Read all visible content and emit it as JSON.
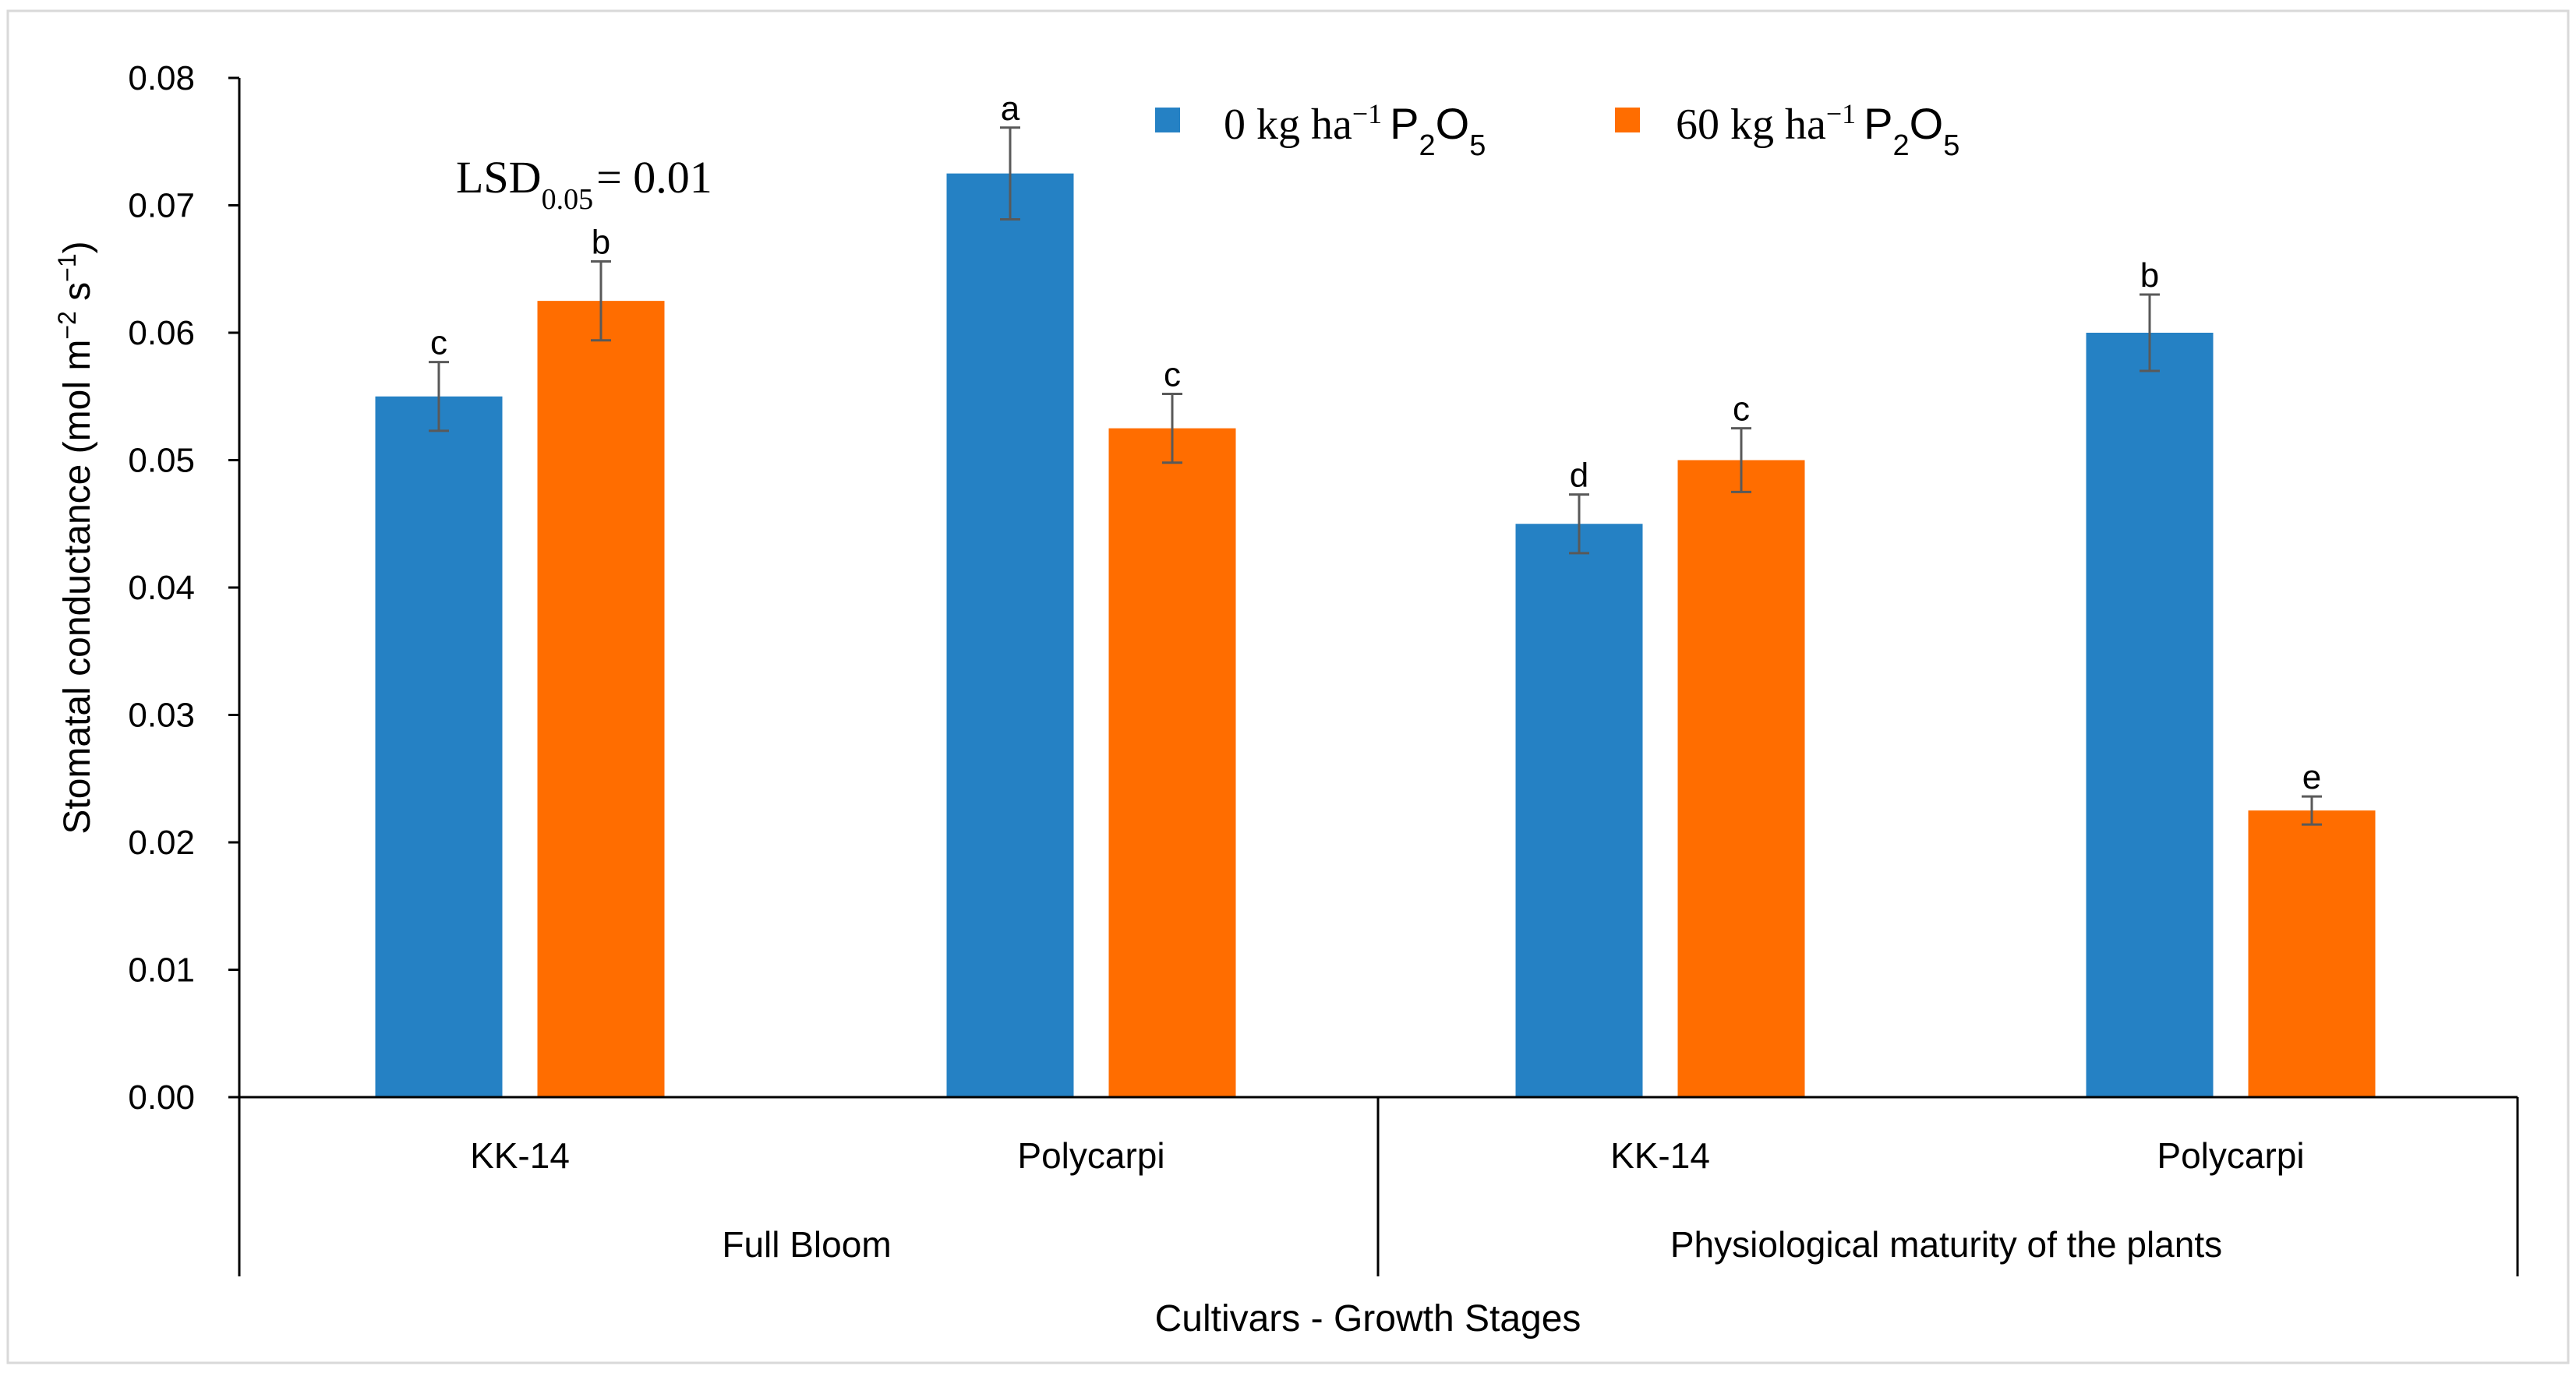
{
  "chart_data": {
    "type": "bar",
    "title": "",
    "ylabel_text": "Stomatal conductance (mol m",
    "ylabel_sup1": "−2",
    "ylabel_mid": " s",
    "ylabel_sup2": "−1",
    "ylabel_end": ")",
    "xlabel": "Cultivars - Growth Stages",
    "ylim": [
      0,
      0.08
    ],
    "ytick_values": [
      0,
      0.01,
      0.02,
      0.03,
      0.04,
      0.05,
      0.06,
      0.07,
      0.08
    ],
    "ytick_labels": [
      "0.00",
      "0.01",
      "0.02",
      "0.03",
      "0.04",
      "0.05",
      "0.06",
      "0.07",
      "0.08"
    ],
    "categories": [
      "KK-14",
      "Polycarpi",
      "KK-14",
      "Polycarpi"
    ],
    "groups": [
      "Full Bloom",
      "Physiological maturity of the plants"
    ],
    "series": [
      {
        "name": "0 kg ha−1 P2O5",
        "legend_prefix": "0 kg ha",
        "legend_sup": "−1",
        "legend_chem": "P",
        "legend_sub1": "2",
        "legend_chem2": "O",
        "legend_sub2": "5",
        "color": "#2581c4",
        "values": [
          0.055,
          0.0725,
          0.045,
          0.06
        ],
        "errors": [
          0.0027,
          0.0036,
          0.0023,
          0.003
        ],
        "letters": [
          "c",
          "a",
          "d",
          "b"
        ]
      },
      {
        "name": "60 kg ha−1 P2O5",
        "legend_prefix": "60 kg ha",
        "legend_sup": "−1",
        "legend_chem": "P",
        "legend_sub1": "2",
        "legend_chem2": "O",
        "legend_sub2": "5",
        "color": "#ff6d00",
        "values": [
          0.0625,
          0.0525,
          0.05,
          0.0225
        ],
        "errors": [
          0.0031,
          0.0027,
          0.0025,
          0.0011
        ],
        "letters": [
          "b",
          "c",
          "c",
          "e"
        ]
      }
    ],
    "annotation": {
      "main": "LSD",
      "sub": "0.05",
      "rest": "= 0.01"
    },
    "colors": {
      "axis": "#000000",
      "error_bar": "#595959",
      "frame": "#d9d9d9"
    }
  }
}
